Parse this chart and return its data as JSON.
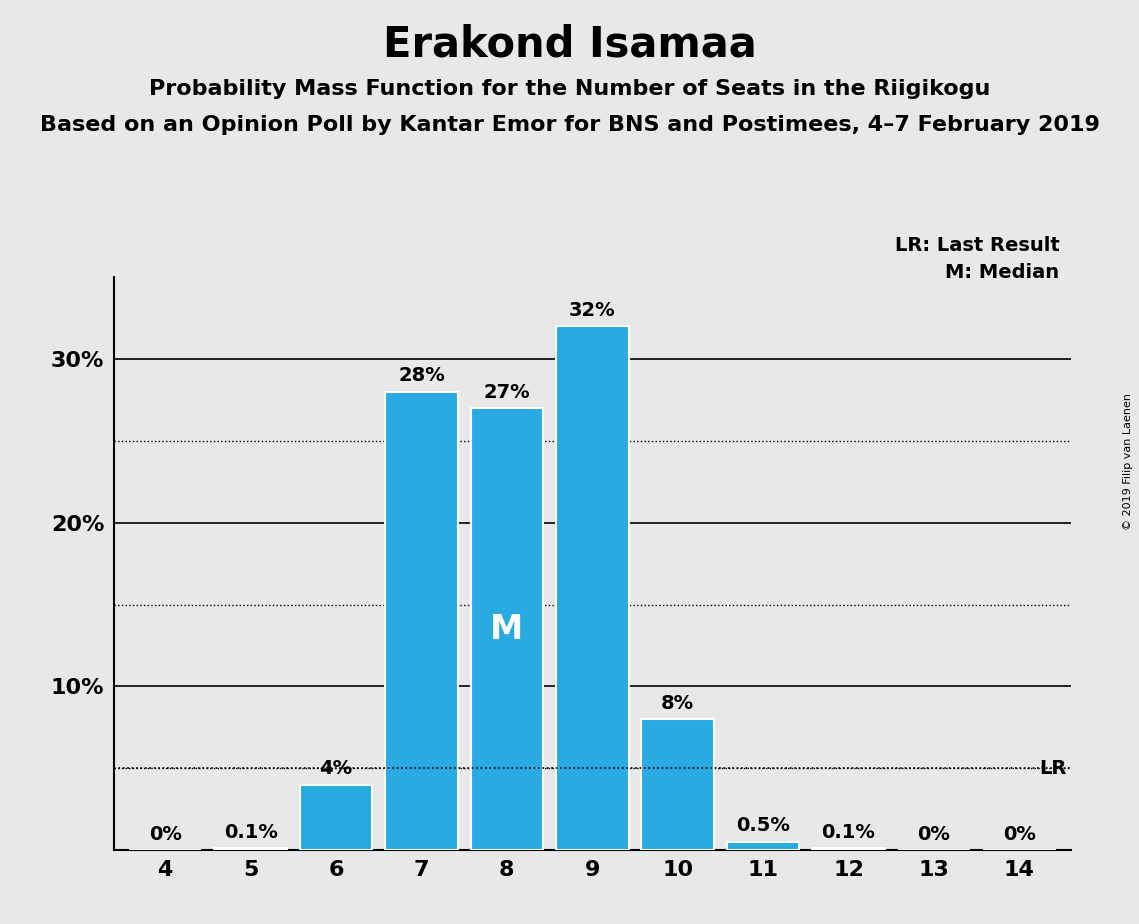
{
  "title": "Erakond Isamaa",
  "subtitle1": "Probability Mass Function for the Number of Seats in the Riigikogu",
  "subtitle2": "Based on an Opinion Poll by Kantar Emor for BNS and Postimees, 4–7 February 2019",
  "copyright": "© 2019 Filip van Laenen",
  "categories": [
    4,
    5,
    6,
    7,
    8,
    9,
    10,
    11,
    12,
    13,
    14
  ],
  "values": [
    0.0,
    0.1,
    4.0,
    28.0,
    27.0,
    32.0,
    8.0,
    0.5,
    0.1,
    0.0,
    0.0
  ],
  "labels": [
    "0%",
    "0.1%",
    "4%",
    "28%",
    "27%",
    "32%",
    "8%",
    "0.5%",
    "0.1%",
    "0%",
    "0%"
  ],
  "bar_color": "#29ABE2",
  "background_color": "#E8E8E8",
  "ylim": [
    0,
    35
  ],
  "solid_gridlines": [
    10,
    20,
    30
  ],
  "dotted_gridlines": [
    5,
    15,
    25
  ],
  "lr_value": 5.0,
  "median_bar": 8,
  "legend_lr": "LR: Last Result",
  "legend_m": "M: Median",
  "bar_edge_color": "white",
  "bar_linewidth": 1.5,
  "title_fontsize": 30,
  "subtitle1_fontsize": 16,
  "subtitle2_fontsize": 16,
  "tick_fontsize": 16,
  "label_fontsize": 14,
  "legend_fontsize": 14,
  "copyright_fontsize": 8
}
